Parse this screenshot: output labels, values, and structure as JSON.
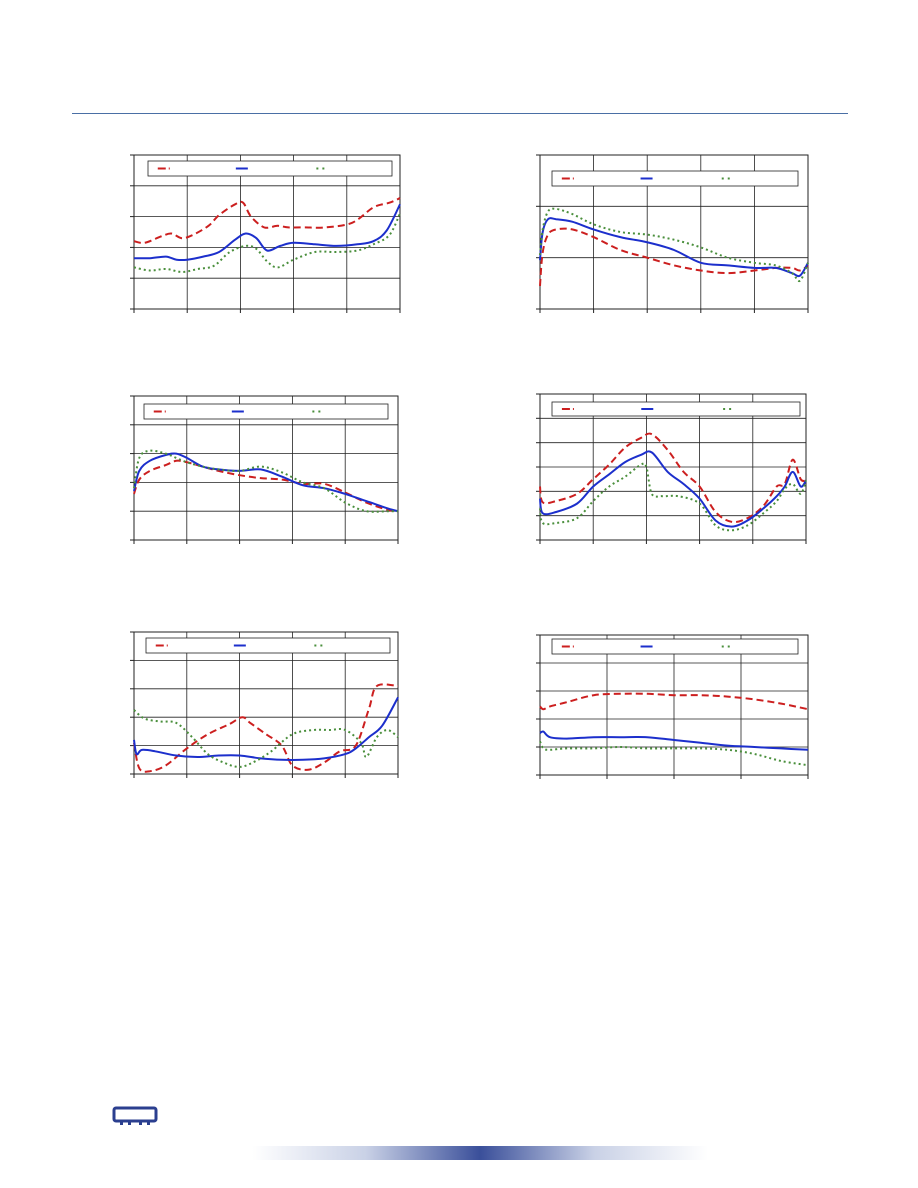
{
  "colors": {
    "frame": "#222222",
    "grid": "#222222",
    "header_rule": "#4a6fa5",
    "footer_bar": "#3a4f9a",
    "logo": "#2b3f8f"
  },
  "logo": {
    "icon": "chip-icon"
  },
  "chart_data": [
    {
      "type": "line",
      "legend_placement": "top",
      "grid": true,
      "xlim": [
        0,
        5
      ],
      "ylim": [
        0,
        5
      ],
      "xticks": 5,
      "yticks": 5,
      "series": [
        {
          "color": "#cc1f1f",
          "style": "dash",
          "x": [
            0,
            0.2,
            0.5,
            0.7,
            0.9,
            1.1,
            1.4,
            1.6,
            1.9,
            2.05,
            2.2,
            2.45,
            2.7,
            2.9,
            3.2,
            3.6,
            4.1,
            4.5,
            4.8,
            5
          ],
          "y": [
            2.2,
            2.15,
            2.35,
            2.45,
            2.3,
            2.4,
            2.7,
            3.05,
            3.4,
            3.45,
            3.0,
            2.65,
            2.7,
            2.65,
            2.65,
            2.65,
            2.8,
            3.3,
            3.45,
            3.6
          ]
        },
        {
          "color": "#1c2fcc",
          "style": "solid",
          "x": [
            0,
            0.3,
            0.6,
            0.8,
            1.0,
            1.3,
            1.6,
            1.9,
            2.1,
            2.3,
            2.5,
            2.75,
            3.0,
            3.4,
            3.8,
            4.2,
            4.5,
            4.75,
            5
          ],
          "y": [
            1.65,
            1.65,
            1.7,
            1.6,
            1.6,
            1.7,
            1.85,
            2.25,
            2.45,
            2.3,
            1.9,
            2.05,
            2.15,
            2.1,
            2.05,
            2.1,
            2.2,
            2.55,
            3.4
          ]
        },
        {
          "color": "#4a8f3c",
          "style": "dot",
          "x": [
            0,
            0.3,
            0.6,
            0.9,
            1.2,
            1.5,
            1.8,
            2.1,
            2.3,
            2.5,
            2.7,
            3.0,
            3.4,
            3.8,
            4.2,
            4.5,
            4.8,
            5
          ],
          "y": [
            1.35,
            1.25,
            1.3,
            1.2,
            1.3,
            1.4,
            1.85,
            2.05,
            1.95,
            1.55,
            1.35,
            1.6,
            1.85,
            1.85,
            1.9,
            2.1,
            2.4,
            3.1
          ]
        }
      ]
    },
    {
      "type": "line",
      "legend_placement": "top",
      "grid": true,
      "xlim": [
        0,
        5
      ],
      "ylim": [
        0,
        3
      ],
      "xticks": 5,
      "yticks": 3,
      "series": [
        {
          "color": "#cc1f1f",
          "style": "dash",
          "x": [
            0,
            0.05,
            0.15,
            0.3,
            0.6,
            1.0,
            1.5,
            2.0,
            2.5,
            3.0,
            3.5,
            4.0,
            4.4,
            4.7,
            4.85,
            5
          ],
          "y": [
            0.45,
            1.1,
            1.45,
            1.55,
            1.55,
            1.4,
            1.15,
            1.0,
            0.85,
            0.75,
            0.7,
            0.75,
            0.8,
            0.8,
            0.75,
            0.85
          ]
        },
        {
          "color": "#1c2fcc",
          "style": "solid",
          "x": [
            0,
            0.05,
            0.15,
            0.3,
            0.6,
            1.0,
            1.5,
            2.0,
            2.5,
            3.0,
            3.5,
            4.0,
            4.4,
            4.7,
            4.85,
            5
          ],
          "y": [
            0.95,
            1.5,
            1.75,
            1.75,
            1.7,
            1.55,
            1.4,
            1.3,
            1.15,
            0.9,
            0.85,
            0.8,
            0.8,
            0.7,
            0.65,
            0.9
          ]
        },
        {
          "color": "#4a8f3c",
          "style": "dot",
          "x": [
            0,
            0.05,
            0.15,
            0.3,
            0.6,
            1.0,
            1.5,
            2.0,
            2.5,
            3.0,
            3.5,
            4.0,
            4.4,
            4.7,
            4.85,
            5
          ],
          "y": [
            1.05,
            1.55,
            1.9,
            1.95,
            1.85,
            1.65,
            1.5,
            1.45,
            1.35,
            1.2,
            1.0,
            0.9,
            0.85,
            0.7,
            0.55,
            0.9
          ]
        }
      ]
    },
    {
      "type": "line",
      "legend_placement": "top",
      "grid": true,
      "xlim": [
        0,
        5
      ],
      "ylim": [
        0,
        5
      ],
      "xticks": 5,
      "yticks": 5,
      "series": [
        {
          "color": "#cc1f1f",
          "style": "dash",
          "x": [
            0,
            0.1,
            0.3,
            0.6,
            0.8,
            1.0,
            1.3,
            1.6,
            2.0,
            2.4,
            2.8,
            3.2,
            3.6,
            4.0,
            4.4,
            4.8,
            5
          ],
          "y": [
            1.6,
            2.1,
            2.4,
            2.6,
            2.75,
            2.7,
            2.55,
            2.4,
            2.25,
            2.15,
            2.1,
            1.95,
            1.95,
            1.65,
            1.3,
            1.05,
            1.0
          ]
        },
        {
          "color": "#1c2fcc",
          "style": "solid",
          "x": [
            0,
            0.1,
            0.3,
            0.6,
            0.8,
            1.0,
            1.3,
            1.6,
            2.0,
            2.4,
            2.8,
            3.2,
            3.6,
            4.0,
            4.4,
            4.8,
            5
          ],
          "y": [
            1.7,
            2.4,
            2.75,
            2.95,
            3.0,
            2.85,
            2.55,
            2.45,
            2.4,
            2.45,
            2.2,
            1.9,
            1.8,
            1.6,
            1.35,
            1.1,
            1.0
          ]
        },
        {
          "color": "#4a8f3c",
          "style": "dot",
          "x": [
            0,
            0.1,
            0.3,
            0.6,
            0.8,
            1.0,
            1.3,
            1.6,
            2.0,
            2.4,
            2.8,
            3.2,
            3.6,
            4.0,
            4.4,
            4.8,
            5
          ],
          "y": [
            1.8,
            2.85,
            3.1,
            3.0,
            2.85,
            2.7,
            2.55,
            2.45,
            2.4,
            2.55,
            2.35,
            2.0,
            1.8,
            1.3,
            1.0,
            1.0,
            1.0
          ]
        }
      ]
    },
    {
      "type": "line",
      "legend_placement": "top",
      "grid": true,
      "xlim": [
        0,
        5
      ],
      "ylim": [
        0,
        6
      ],
      "xticks": 5,
      "yticks": 6,
      "series": [
        {
          "color": "#cc1f1f",
          "style": "dash",
          "x": [
            0,
            0.05,
            0.3,
            0.7,
            1.0,
            1.3,
            1.6,
            1.9,
            2.1,
            2.4,
            2.7,
            3.0,
            3.3,
            3.6,
            3.9,
            4.2,
            4.45,
            4.6,
            4.75,
            4.9,
            5
          ],
          "y": [
            2.2,
            1.55,
            1.6,
            1.9,
            2.5,
            3.1,
            3.8,
            4.2,
            4.35,
            3.7,
            2.8,
            2.2,
            1.15,
            0.75,
            0.9,
            1.4,
            2.2,
            2.3,
            3.3,
            2.5,
            2.45
          ]
        },
        {
          "color": "#1c2fcc",
          "style": "solid",
          "x": [
            0,
            0.05,
            0.3,
            0.7,
            1.0,
            1.3,
            1.6,
            1.9,
            2.1,
            2.4,
            2.7,
            3.0,
            3.3,
            3.6,
            3.9,
            4.2,
            4.45,
            4.6,
            4.75,
            4.9,
            5
          ],
          "y": [
            1.7,
            1.1,
            1.15,
            1.5,
            2.2,
            2.7,
            3.2,
            3.5,
            3.6,
            2.8,
            2.3,
            1.7,
            0.8,
            0.55,
            0.8,
            1.3,
            1.8,
            2.2,
            2.8,
            2.2,
            2.45
          ]
        },
        {
          "color": "#4a8f3c",
          "style": "dot",
          "x": [
            0,
            0.05,
            0.3,
            0.7,
            1.0,
            1.3,
            1.6,
            1.9,
            2.0,
            2.1,
            2.3,
            2.6,
            3.0,
            3.3,
            3.6,
            3.9,
            4.2,
            4.45,
            4.6,
            4.75,
            4.9,
            5
          ],
          "y": [
            1.3,
            0.7,
            0.7,
            0.9,
            1.6,
            2.2,
            2.6,
            3.1,
            3.0,
            1.9,
            1.8,
            1.8,
            1.5,
            0.6,
            0.4,
            0.6,
            1.1,
            1.6,
            2.1,
            2.3,
            1.9,
            2.45
          ]
        }
      ]
    },
    {
      "type": "line",
      "legend_placement": "top",
      "grid": true,
      "xlim": [
        0,
        5
      ],
      "ylim": [
        0,
        5
      ],
      "xticks": 5,
      "yticks": 5,
      "series": [
        {
          "color": "#cc1f1f",
          "style": "dash",
          "x": [
            0,
            0.1,
            0.3,
            0.6,
            1.0,
            1.4,
            1.8,
            2.05,
            2.2,
            2.5,
            2.8,
            3.0,
            3.3,
            3.6,
            3.9,
            4.2,
            4.45,
            4.6,
            5
          ],
          "y": [
            1.1,
            0.2,
            0.1,
            0.3,
            0.9,
            1.4,
            1.75,
            2.0,
            1.8,
            1.4,
            1.0,
            0.3,
            0.15,
            0.4,
            0.8,
            1.0,
            2.3,
            3.1,
            3.1
          ]
        },
        {
          "color": "#1c2fcc",
          "style": "solid",
          "x": [
            0,
            0.05,
            0.15,
            0.4,
            0.8,
            1.2,
            1.6,
            2.0,
            2.4,
            2.8,
            3.2,
            3.6,
            4.0,
            4.2,
            4.45,
            4.7,
            5
          ],
          "y": [
            1.2,
            0.7,
            0.85,
            0.8,
            0.65,
            0.6,
            0.65,
            0.65,
            0.55,
            0.5,
            0.5,
            0.55,
            0.7,
            0.9,
            1.3,
            1.7,
            2.7
          ]
        },
        {
          "color": "#4a8f3c",
          "style": "dot",
          "x": [
            0,
            0.2,
            0.5,
            0.8,
            1.1,
            1.4,
            1.7,
            2.0,
            2.3,
            2.6,
            3.0,
            3.4,
            3.7,
            4.0,
            4.3,
            4.4,
            4.6,
            4.8,
            5
          ],
          "y": [
            2.25,
            1.95,
            1.85,
            1.8,
            1.3,
            0.7,
            0.4,
            0.25,
            0.45,
            0.8,
            1.4,
            1.55,
            1.55,
            1.55,
            1.1,
            0.6,
            1.3,
            1.55,
            1.3
          ]
        }
      ]
    },
    {
      "type": "line",
      "legend_placement": "top",
      "grid": true,
      "xlim": [
        0,
        4
      ],
      "ylim": [
        0,
        5
      ],
      "xticks": 4,
      "yticks": 5,
      "series": [
        {
          "color": "#cc1f1f",
          "style": "dash",
          "x": [
            0,
            0.05,
            0.15,
            0.4,
            0.8,
            1.2,
            1.6,
            2.0,
            2.4,
            2.8,
            3.2,
            3.6,
            4.0
          ],
          "y": [
            2.45,
            2.35,
            2.45,
            2.6,
            2.85,
            2.9,
            2.9,
            2.85,
            2.85,
            2.8,
            2.7,
            2.55,
            2.35
          ]
        },
        {
          "color": "#1c2fcc",
          "style": "solid",
          "x": [
            0,
            0.05,
            0.15,
            0.4,
            0.8,
            1.2,
            1.6,
            2.0,
            2.4,
            2.8,
            3.2,
            3.6,
            4.0
          ],
          "y": [
            1.5,
            1.55,
            1.35,
            1.3,
            1.35,
            1.35,
            1.35,
            1.25,
            1.15,
            1.05,
            1.0,
            0.95,
            0.9
          ]
        },
        {
          "color": "#4a8f3c",
          "style": "dot",
          "x": [
            0,
            0.05,
            0.15,
            0.4,
            0.8,
            1.2,
            1.6,
            2.0,
            2.4,
            2.8,
            3.2,
            3.6,
            4.0
          ],
          "y": [
            1.2,
            0.95,
            0.9,
            0.95,
            0.95,
            1.0,
            0.95,
            0.95,
            0.95,
            0.9,
            0.75,
            0.5,
            0.35
          ]
        }
      ]
    }
  ]
}
